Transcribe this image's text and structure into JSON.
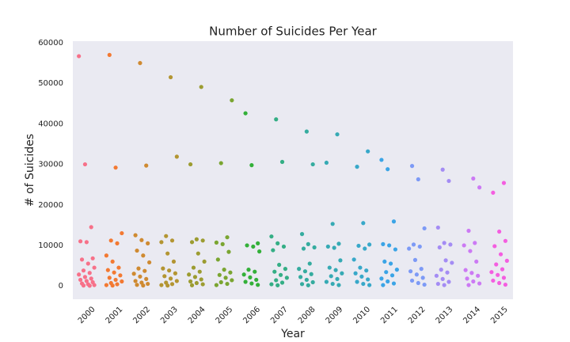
{
  "chart_data": {
    "type": "strip",
    "title": "Number of Suicides Per Year",
    "x_label": "Year",
    "y_label": "# of Suicides",
    "categories": [
      "2000",
      "2001",
      "2002",
      "2003",
      "2004",
      "2005",
      "2006",
      "2007",
      "2008",
      "2009",
      "2010",
      "2011",
      "2012",
      "2013",
      "2014",
      "2015"
    ],
    "colors": [
      "#f77189",
      "#f37932",
      "#cf8a31",
      "#b39532",
      "#9c9c31",
      "#7aa531",
      "#33b039",
      "#34ae85",
      "#35ac9f",
      "#36aab4",
      "#38a8c9",
      "#3ba4e6",
      "#7d9af6",
      "#a48cf4",
      "#cc7af4",
      "#f45ee0"
    ],
    "values": [
      [
        56700,
        30000,
        14500,
        11000,
        10800,
        6800,
        6500,
        5500,
        4500,
        3800,
        3200,
        2800,
        2200,
        1800,
        1500,
        1200,
        900,
        600,
        400,
        200,
        100,
        50
      ],
      [
        57000,
        29200,
        13000,
        11200,
        10500,
        7500,
        6000,
        4500,
        3900,
        3300,
        2600,
        2000,
        1500,
        1100,
        700,
        400,
        200,
        80
      ],
      [
        55000,
        29700,
        12500,
        11300,
        10500,
        8700,
        7500,
        5800,
        4300,
        3700,
        3000,
        2300,
        1700,
        1200,
        800,
        500,
        250,
        100
      ],
      [
        51500,
        31900,
        12300,
        11200,
        10800,
        8000,
        6000,
        4300,
        3800,
        3100,
        2400,
        1800,
        1200,
        800,
        450,
        200,
        80
      ],
      [
        49100,
        30000,
        11500,
        11200,
        10800,
        8000,
        6000,
        4500,
        3500,
        2800,
        2200,
        1600,
        1100,
        700,
        400,
        150
      ],
      [
        45800,
        30300,
        12000,
        10700,
        10300,
        8400,
        6500,
        4000,
        3300,
        2700,
        2000,
        1400,
        900,
        500,
        200
      ],
      [
        42600,
        29800,
        10500,
        10000,
        9700,
        8500,
        4000,
        3500,
        2800,
        2100,
        1500,
        1000,
        600,
        250
      ],
      [
        41100,
        30600,
        12200,
        10500,
        9700,
        8800,
        5200,
        4200,
        3500,
        2700,
        2000,
        1400,
        800,
        400,
        150
      ],
      [
        38100,
        30000,
        12800,
        10300,
        9500,
        9200,
        5500,
        4200,
        3600,
        2900,
        2200,
        1500,
        900,
        450,
        150
      ],
      [
        37400,
        30400,
        15300,
        10400,
        9700,
        9400,
        6300,
        4500,
        3900,
        3100,
        2400,
        1700,
        1000,
        500,
        200
      ],
      [
        33200,
        29400,
        15500,
        10200,
        9900,
        9200,
        6500,
        4500,
        3800,
        3100,
        2300,
        1600,
        1000,
        500,
        200
      ],
      [
        31100,
        28800,
        15900,
        10300,
        10000,
        9000,
        6000,
        5500,
        4000,
        3400,
        2600,
        1800,
        1100,
        600,
        200
      ],
      [
        29600,
        26300,
        14200,
        10200,
        9700,
        9200,
        6400,
        4200,
        3600,
        2800,
        2000,
        1300,
        700,
        300
      ],
      [
        28700,
        25900,
        14400,
        10600,
        10200,
        9500,
        6300,
        5700,
        4000,
        3300,
        2500,
        1700,
        1000,
        500,
        200
      ],
      [
        26500,
        24300,
        13600,
        10600,
        10000,
        8600,
        6000,
        3900,
        3200,
        2500,
        1800,
        1100,
        600,
        200
      ],
      [
        25400,
        23000,
        13400,
        11100,
        9800,
        7800,
        6200,
        5300,
        4100,
        3400,
        2700,
        2000,
        1300,
        700,
        300
      ]
    ],
    "ylim": [
      -3300,
      60400
    ],
    "yticks": [
      0,
      10000,
      20000,
      30000,
      40000,
      50000,
      60000
    ]
  }
}
